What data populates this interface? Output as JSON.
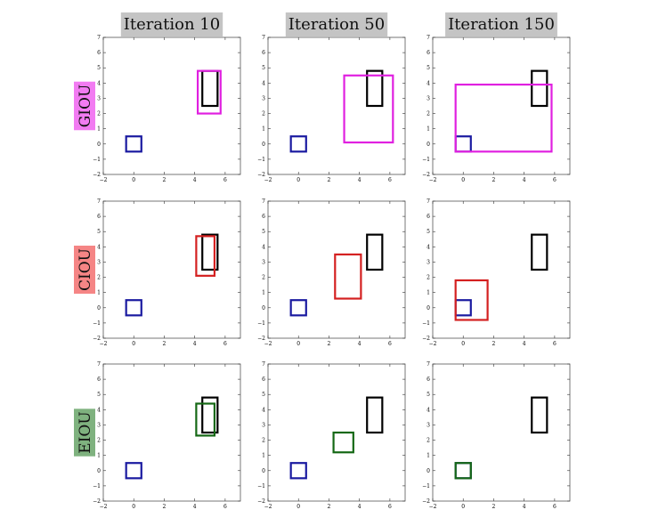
{
  "chart_data": {
    "type": "grid-of-box-plots",
    "title": "",
    "xlabel": "",
    "ylabel": "",
    "xlim": [
      -2,
      7
    ],
    "ylim": [
      -2,
      7
    ],
    "x_ticks": [
      -2,
      0,
      2,
      4,
      6
    ],
    "y_ticks": [
      -2,
      -1,
      0,
      1,
      2,
      3,
      4,
      5,
      6,
      7
    ],
    "grid": false,
    "columns": [
      {
        "title": "Iteration 10"
      },
      {
        "title": "Iteration 50"
      },
      {
        "title": "Iteration 150"
      }
    ],
    "rows": [
      {
        "label": "GIOU",
        "label_bg": "#f27bf2",
        "pred_color": "#e020e0"
      },
      {
        "label": "CIOU",
        "label_bg": "#f58585",
        "pred_color": "#d42020"
      },
      {
        "label": "EIOU",
        "label_bg": "#7fb27f",
        "pred_color": "#156815"
      }
    ],
    "anchor_box": {
      "x1": -0.5,
      "y1": -0.5,
      "x2": 0.5,
      "y2": 0.5,
      "color": "#1a1aa0"
    },
    "target_box": {
      "x1": 4.5,
      "y1": 2.5,
      "x2": 5.5,
      "y2": 4.8,
      "color": "#000000"
    },
    "predicted_boxes": [
      [
        {
          "x1": 4.2,
          "y1": 2.0,
          "x2": 5.7,
          "y2": 4.8
        },
        {
          "x1": 3.0,
          "y1": 0.1,
          "x2": 6.2,
          "y2": 4.5
        },
        {
          "x1": -0.5,
          "y1": -0.5,
          "x2": 5.8,
          "y2": 3.9
        }
      ],
      [
        {
          "x1": 4.1,
          "y1": 2.1,
          "x2": 5.3,
          "y2": 4.7
        },
        {
          "x1": 2.4,
          "y1": 0.6,
          "x2": 4.1,
          "y2": 3.5
        },
        {
          "x1": -0.5,
          "y1": -0.8,
          "x2": 1.6,
          "y2": 1.8
        }
      ],
      [
        {
          "x1": 4.1,
          "y1": 2.3,
          "x2": 5.3,
          "y2": 4.4
        },
        {
          "x1": 2.3,
          "y1": 1.2,
          "x2": 3.6,
          "y2": 2.5
        },
        {
          "x1": -0.5,
          "y1": -0.5,
          "x2": 0.5,
          "y2": 0.5
        }
      ]
    ]
  }
}
